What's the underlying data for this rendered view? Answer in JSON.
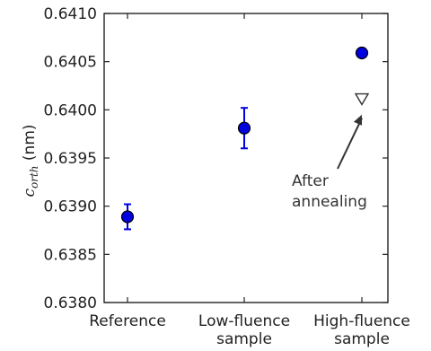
{
  "chart_data": {
    "type": "scatter",
    "categories": [
      "Reference",
      "Low-fluence\nsample",
      "High-fluence\nsample"
    ],
    "series": [
      {
        "marker": "filled-circle",
        "color": "#0000e0",
        "values": [
          0.63889,
          0.63981,
          0.64059
        ],
        "error": [
          0.00013,
          0.00021,
          0
        ]
      },
      {
        "marker": "open-triangle-down",
        "color": "#333333",
        "points": [
          {
            "category": 2,
            "value": 0.64011
          }
        ]
      }
    ],
    "ylabel_symbol": "c",
    "ylabel_subscript": "orth",
    "ylabel_unit": " (nm)",
    "ylim": [
      0.638,
      0.641
    ],
    "yticks": [
      "0.6380",
      "0.6385",
      "0.6390",
      "0.6395",
      "0.6400",
      "0.6405",
      "0.6410"
    ],
    "annotation": {
      "lines": [
        "After",
        "annealing"
      ],
      "arrow_to": {
        "category": 2,
        "value": 0.63995
      }
    },
    "grid": false
  }
}
